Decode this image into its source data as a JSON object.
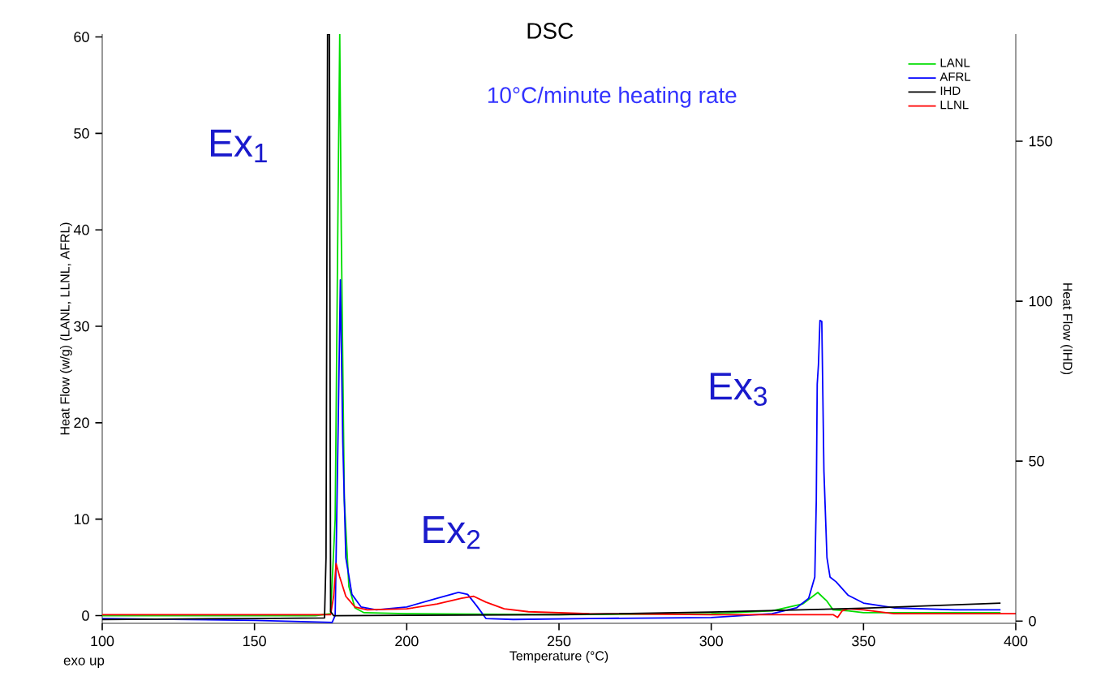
{
  "chart_data": {
    "type": "line",
    "title": "DSC",
    "xlabel": "Temperature (°C)",
    "ylabel": "Heat Flow  (w/g)  (LANL, LLNL, AFRL)",
    "y2label": "Heat Flow (IHD)",
    "annotations": [
      "10°C/minute heating rate",
      "Ex$_{1}$",
      "Ex$_{2}$",
      "Ex$_{3}$",
      "exo up"
    ],
    "xlim": [
      100,
      400
    ],
    "ylim": [
      -0.8,
      60.3
    ],
    "y2lim": [
      -0.7,
      183.5
    ],
    "xticks": [
      100,
      150,
      200,
      250,
      300,
      350,
      400
    ],
    "yticks": [
      0,
      10,
      20,
      30,
      40,
      50,
      60
    ],
    "y2ticks": [
      0,
      50,
      100,
      150
    ],
    "grid": false,
    "legend": "top right",
    "marker": "none",
    "line_style": "solid",
    "series": [
      {
        "name": "LANL",
        "color": "#00dd00",
        "x": [
          100,
          170,
          175,
          176.5,
          177.5,
          178,
          178.5,
          179.5,
          181,
          183,
          186,
          200,
          250,
          300,
          320,
          330,
          335,
          338,
          340,
          345,
          350,
          395
        ],
        "values": [
          0,
          0,
          0.2,
          10,
          45,
          60.3,
          40,
          12,
          3,
          0.8,
          0.3,
          0.2,
          0.1,
          0.2,
          0.5,
          1.2,
          2.4,
          1.5,
          0.6,
          0.5,
          0.3,
          0.3
        ]
      },
      {
        "name": "AFRL",
        "color": "#0000ff",
        "x": [
          100,
          150,
          175.5,
          176.5,
          177.5,
          178.2,
          179,
          180,
          182,
          185,
          190,
          200,
          210,
          217,
          220,
          223,
          226,
          235,
          260,
          300,
          320,
          328,
          332,
          334,
          334.5,
          334.8,
          335.2,
          335.7,
          336.3,
          337,
          338,
          339,
          341,
          345,
          350,
          360,
          380,
          395
        ],
        "values": [
          -0.3,
          -0.5,
          -0.7,
          0,
          20,
          34.8,
          18,
          6,
          2.2,
          0.9,
          0.6,
          0.9,
          1.8,
          2.4,
          2.2,
          1.0,
          -0.3,
          -0.4,
          -0.3,
          -0.2,
          0.2,
          0.8,
          1.8,
          4,
          12,
          24,
          26,
          30.6,
          30.5,
          15,
          6,
          4,
          3.5,
          2.1,
          1.3,
          0.8,
          0.6,
          0.6
        ]
      },
      {
        "name": "IHD",
        "color": "#000000",
        "axis": "y2",
        "x": [
          100,
          150,
          173,
          173.5,
          174,
          174.6,
          175,
          176,
          200,
          250,
          300,
          350,
          395
        ],
        "values": [
          0.5,
          0.8,
          1,
          20,
          183.5,
          183.5,
          3,
          1.7,
          1.8,
          2,
          2.8,
          4,
          5.6
        ]
      },
      {
        "name": "LLNL",
        "color": "#ff0000",
        "x": [
          100,
          150,
          175,
          176,
          176.8,
          178,
          180,
          183,
          187,
          200,
          210,
          218,
          222,
          226,
          232,
          240,
          260,
          300,
          340,
          341.5,
          343,
          345,
          350,
          355,
          360,
          400
        ],
        "values": [
          0.1,
          0.1,
          0.1,
          2,
          5.4,
          4,
          2,
          0.9,
          0.6,
          0.7,
          1.2,
          1.8,
          2.0,
          1.4,
          0.7,
          0.4,
          0.2,
          0.1,
          0.1,
          -0.2,
          0.5,
          0.7,
          0.6,
          0.4,
          0.2,
          0.2
        ]
      }
    ]
  }
}
